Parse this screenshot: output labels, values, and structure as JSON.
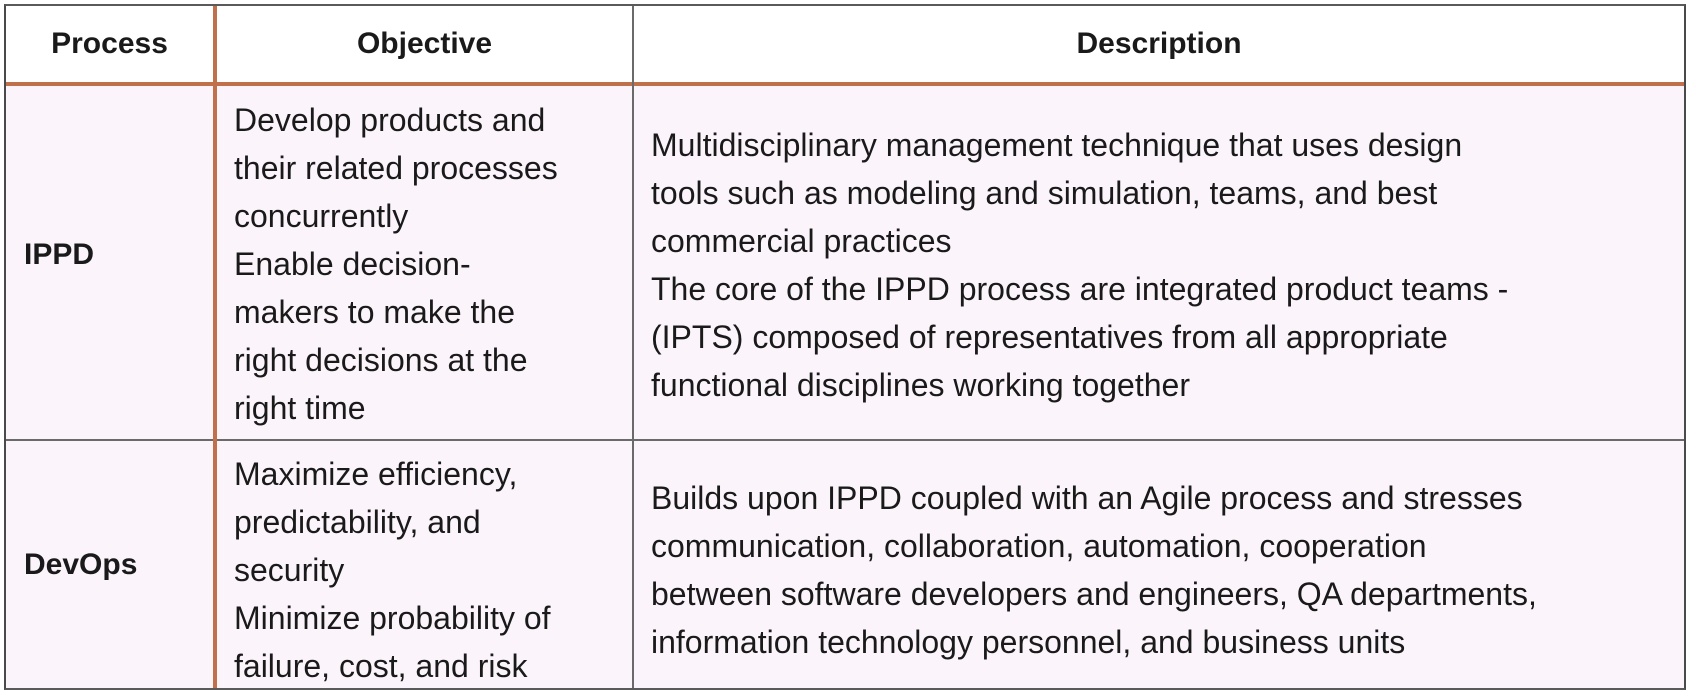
{
  "table": {
    "headers": {
      "process": "Process",
      "objective": "Objective",
      "description": "Description"
    },
    "rows": [
      {
        "process": "IPPD",
        "objective": "Develop products and\ntheir related processes\nconcurrently\nEnable decision-\nmakers to make the\nright decisions at the\nright time",
        "description": "Multidisciplinary management technique that uses design\ntools such as modeling and simulation, teams, and best\ncommercial practices\nThe core of the IPPD process are integrated product teams -\n(IPTS) composed of representatives from all appropriate\nfunctional disciplines working together"
      },
      {
        "process": "DevOps",
        "objective": "Maximize efficiency,\npredictability, and\nsecurity\nMinimize probability of\nfailure, cost, and risk",
        "description": "Builds upon IPPD coupled with an Agile process and stresses\ncommunication, collaboration, automation, cooperation\nbetween software developers and engineers, QA departments,\ninformation technology personnel, and business units"
      }
    ]
  },
  "colors": {
    "header_rule": "#c0704a",
    "row_background": "#fbf5fb",
    "border": "#5a5a5a"
  }
}
